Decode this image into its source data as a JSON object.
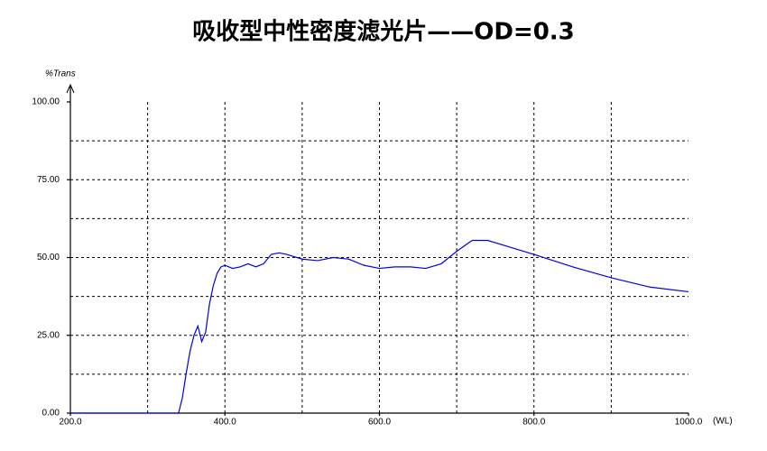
{
  "chart_data": {
    "type": "line",
    "title": "吸收型中性密度滤光片——OD=0.3",
    "y_label": "%Trans",
    "x_label": "(WL)",
    "xlim": [
      200,
      1000
    ],
    "ylim": [
      0,
      100
    ],
    "xticks": [
      {
        "value": 200,
        "label": "200.0"
      },
      {
        "value": 400,
        "label": "400.0"
      },
      {
        "value": 600,
        "label": "600.0"
      },
      {
        "value": 800,
        "label": "800.0"
      },
      {
        "value": 1000,
        "label": "1000.0"
      }
    ],
    "yticks": [
      {
        "value": 0,
        "label": "0.00"
      },
      {
        "value": 25,
        "label": "25.00"
      },
      {
        "value": 50,
        "label": "50.00"
      },
      {
        "value": 75,
        "label": "75.00"
      },
      {
        "value": 100,
        "label": "100.00"
      }
    ],
    "xgrid": [
      300,
      400,
      500,
      600,
      700,
      800,
      900
    ],
    "ygrid": [
      12.5,
      25,
      37.5,
      50,
      62.5,
      75,
      87.5
    ],
    "grid": true,
    "series": [
      {
        "name": "OD=0.3",
        "color": "#0000ee",
        "x": [
          200,
          300,
          335,
          340,
          345,
          350,
          355,
          360,
          365,
          370,
          375,
          380,
          385,
          390,
          395,
          400,
          410,
          420,
          430,
          440,
          450,
          460,
          470,
          480,
          500,
          520,
          540,
          560,
          580,
          600,
          620,
          640,
          660,
          680,
          700,
          720,
          740,
          760,
          800,
          850,
          900,
          950,
          1000
        ],
        "values": [
          0,
          0,
          0,
          0,
          5,
          13,
          20,
          25,
          28,
          23,
          26,
          35,
          41,
          45,
          47,
          47.5,
          46.5,
          47,
          48,
          47,
          48,
          51,
          51.5,
          51,
          49.5,
          49,
          50,
          49.5,
          47.5,
          46.5,
          47,
          47,
          46.5,
          48,
          52,
          55.5,
          55.5,
          54,
          51,
          47,
          43.5,
          40.5,
          39
        ]
      }
    ]
  }
}
